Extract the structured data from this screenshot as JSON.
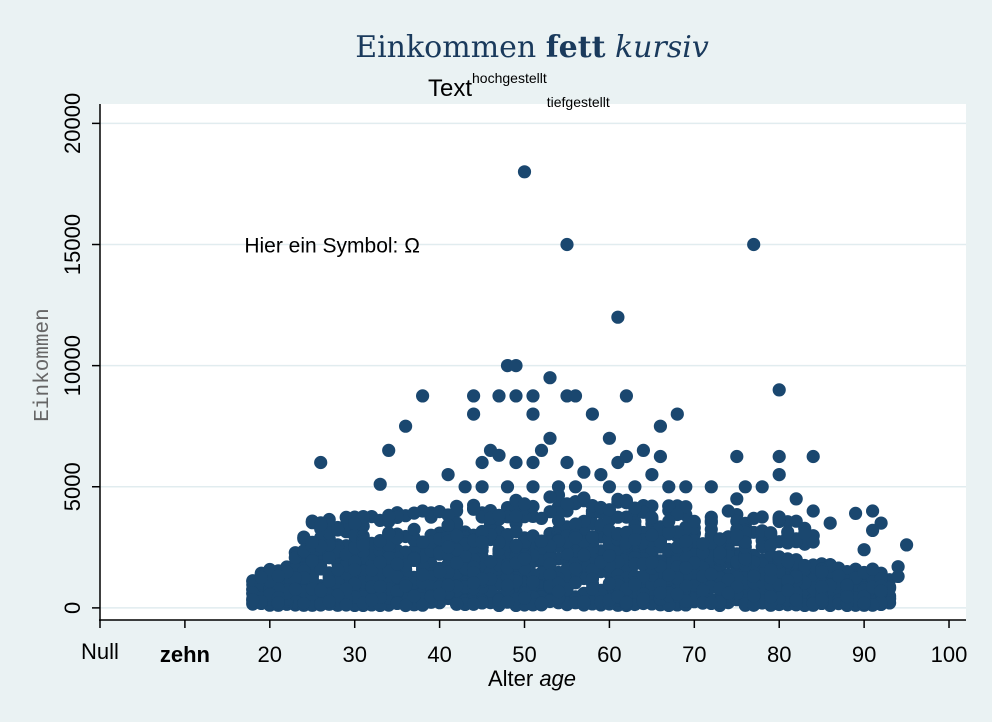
{
  "chart_data": {
    "type": "scatter",
    "title_parts": [
      "Einkommen ",
      "fett",
      " kursiv"
    ],
    "subtitle": {
      "base": "Text",
      "superscript": "hochgestellt",
      "subscript": "tiefgestellt"
    },
    "xlabel": {
      "normal": "Alter ",
      "italic": "age"
    },
    "ylabel": "Einkommen",
    "annotation": "Hier ein Symbol: Ω",
    "annotation_position": {
      "x": 17,
      "y": 15000
    },
    "xlim": [
      0,
      102
    ],
    "ylim": [
      -500,
      20800
    ],
    "x_ticks": [
      {
        "value": 0,
        "label": "Null",
        "style": "mono"
      },
      {
        "value": 10,
        "label": "zehn",
        "style": "bold"
      },
      {
        "value": 20,
        "label": "20"
      },
      {
        "value": 30,
        "label": "30"
      },
      {
        "value": 40,
        "label": "40"
      },
      {
        "value": 50,
        "label": "50"
      },
      {
        "value": 60,
        "label": "60"
      },
      {
        "value": 70,
        "label": "70"
      },
      {
        "value": 80,
        "label": "80"
      },
      {
        "value": 90,
        "label": "90"
      },
      {
        "value": 100,
        "label": "100"
      }
    ],
    "y_ticks": [
      {
        "value": 0,
        "label": "0"
      },
      {
        "value": 5000,
        "label": "5000"
      },
      {
        "value": 10000,
        "label": "10000"
      },
      {
        "value": 15000,
        "label": "15000"
      },
      {
        "value": 20000,
        "label": "20000"
      }
    ],
    "grid": "horizontal",
    "marker_color": "#1a476f",
    "outliers": [
      [
        50,
        18000
      ],
      [
        55,
        15000
      ],
      [
        77,
        15000
      ],
      [
        61,
        12000
      ],
      [
        48,
        10000
      ],
      [
        49,
        10000
      ],
      [
        53,
        9500
      ],
      [
        80,
        9000
      ],
      [
        38,
        8750
      ],
      [
        44,
        8750
      ],
      [
        47,
        8750
      ],
      [
        49,
        8750
      ],
      [
        51,
        8750
      ],
      [
        55,
        8750
      ],
      [
        56,
        8750
      ],
      [
        62,
        8750
      ],
      [
        44,
        8000
      ],
      [
        51,
        8000
      ],
      [
        58,
        8000
      ],
      [
        68,
        8000
      ],
      [
        36,
        7500
      ],
      [
        66,
        7500
      ],
      [
        53,
        7000
      ],
      [
        60,
        7000
      ],
      [
        34,
        6500
      ],
      [
        46,
        6500
      ],
      [
        52,
        6500
      ],
      [
        64,
        6500
      ],
      [
        47,
        6300
      ],
      [
        26,
        6000
      ],
      [
        45,
        6000
      ],
      [
        49,
        6000
      ],
      [
        51,
        6000
      ],
      [
        55,
        6000
      ],
      [
        61,
        6000
      ],
      [
        62,
        6250
      ],
      [
        66,
        6250
      ],
      [
        75,
        6250
      ],
      [
        80,
        6250
      ],
      [
        84,
        6250
      ],
      [
        41,
        5500
      ],
      [
        57,
        5600
      ],
      [
        59,
        5500
      ],
      [
        65,
        5500
      ],
      [
        80,
        5500
      ],
      [
        33,
        5100
      ],
      [
        38,
        5000
      ],
      [
        43,
        5000
      ],
      [
        45,
        5000
      ],
      [
        48,
        5000
      ],
      [
        51,
        5000
      ],
      [
        54,
        5000
      ],
      [
        56,
        5000
      ],
      [
        60,
        5000
      ],
      [
        63,
        5000
      ],
      [
        67,
        5000
      ],
      [
        69,
        5000
      ],
      [
        72,
        5000
      ],
      [
        76,
        5000
      ],
      [
        78,
        5000
      ],
      [
        82,
        4500
      ],
      [
        84,
        4000
      ],
      [
        89,
        3900
      ],
      [
        91,
        4000
      ],
      [
        92,
        3500
      ],
      [
        91,
        3200
      ],
      [
        95,
        2600
      ],
      [
        94,
        1700
      ],
      [
        94,
        1300
      ],
      [
        92,
        1200
      ],
      [
        92,
        900
      ],
      [
        92,
        700
      ],
      [
        91,
        1600
      ],
      [
        90,
        2400
      ],
      [
        86,
        3500
      ],
      [
        75,
        4500
      ],
      [
        74,
        4000
      ]
    ],
    "bulk": {
      "x_range": [
        18,
        93
      ],
      "peak_age": 55,
      "band_low": 100,
      "band_high_base": 2600
    }
  }
}
